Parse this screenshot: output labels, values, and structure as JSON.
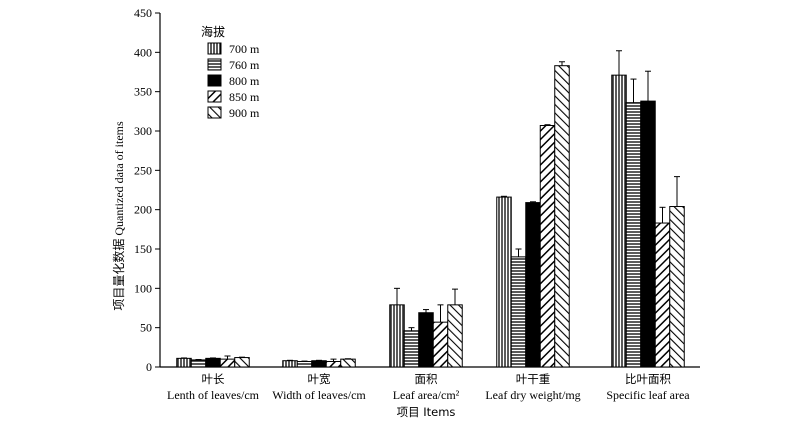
{
  "chart_data": {
    "type": "bar",
    "ylim": [
      0,
      450
    ],
    "yticks": [
      0,
      50,
      100,
      150,
      200,
      250,
      300,
      350,
      400,
      450
    ],
    "ylabel": "项目量化数据 Quantized data of items",
    "xlabel": "项目 Items",
    "legend_title": "海拔",
    "legend_placement": "top-left",
    "categories": [
      {
        "zh": "叶长",
        "en": "Lenth of leaves/cm"
      },
      {
        "zh": "叶宽",
        "en": "Width of leaves/cm"
      },
      {
        "zh": "面积",
        "en": "Leaf area/cm²"
      },
      {
        "zh": "叶干重",
        "en": "Leaf dry weight/mg"
      },
      {
        "zh": "比叶面积",
        "en": "Specific leaf area"
      }
    ],
    "series": [
      {
        "name": "700 m",
        "pattern": "vertical",
        "values": [
          11,
          8,
          79,
          216,
          371
        ],
        "errors": [
          0.5,
          0.5,
          21,
          1,
          31
        ]
      },
      {
        "name": "760 m",
        "pattern": "horizontal",
        "values": [
          9,
          7,
          46,
          140,
          336
        ],
        "errors": [
          0.5,
          0.5,
          4,
          10,
          30
        ]
      },
      {
        "name": "800 m",
        "pattern": "solid",
        "values": [
          11,
          8,
          69,
          209,
          338
        ],
        "errors": [
          0.5,
          0.5,
          4,
          1,
          38
        ]
      },
      {
        "name": "850 m",
        "pattern": "diag-right",
        "values": [
          10,
          7,
          57,
          307,
          183
        ],
        "errors": [
          4,
          3,
          22,
          1,
          20
        ]
      },
      {
        "name": "900 m",
        "pattern": "diag-left",
        "values": [
          12,
          10,
          79,
          383,
          204
        ],
        "errors": [
          0.5,
          0.5,
          20,
          5,
          38
        ]
      }
    ]
  }
}
